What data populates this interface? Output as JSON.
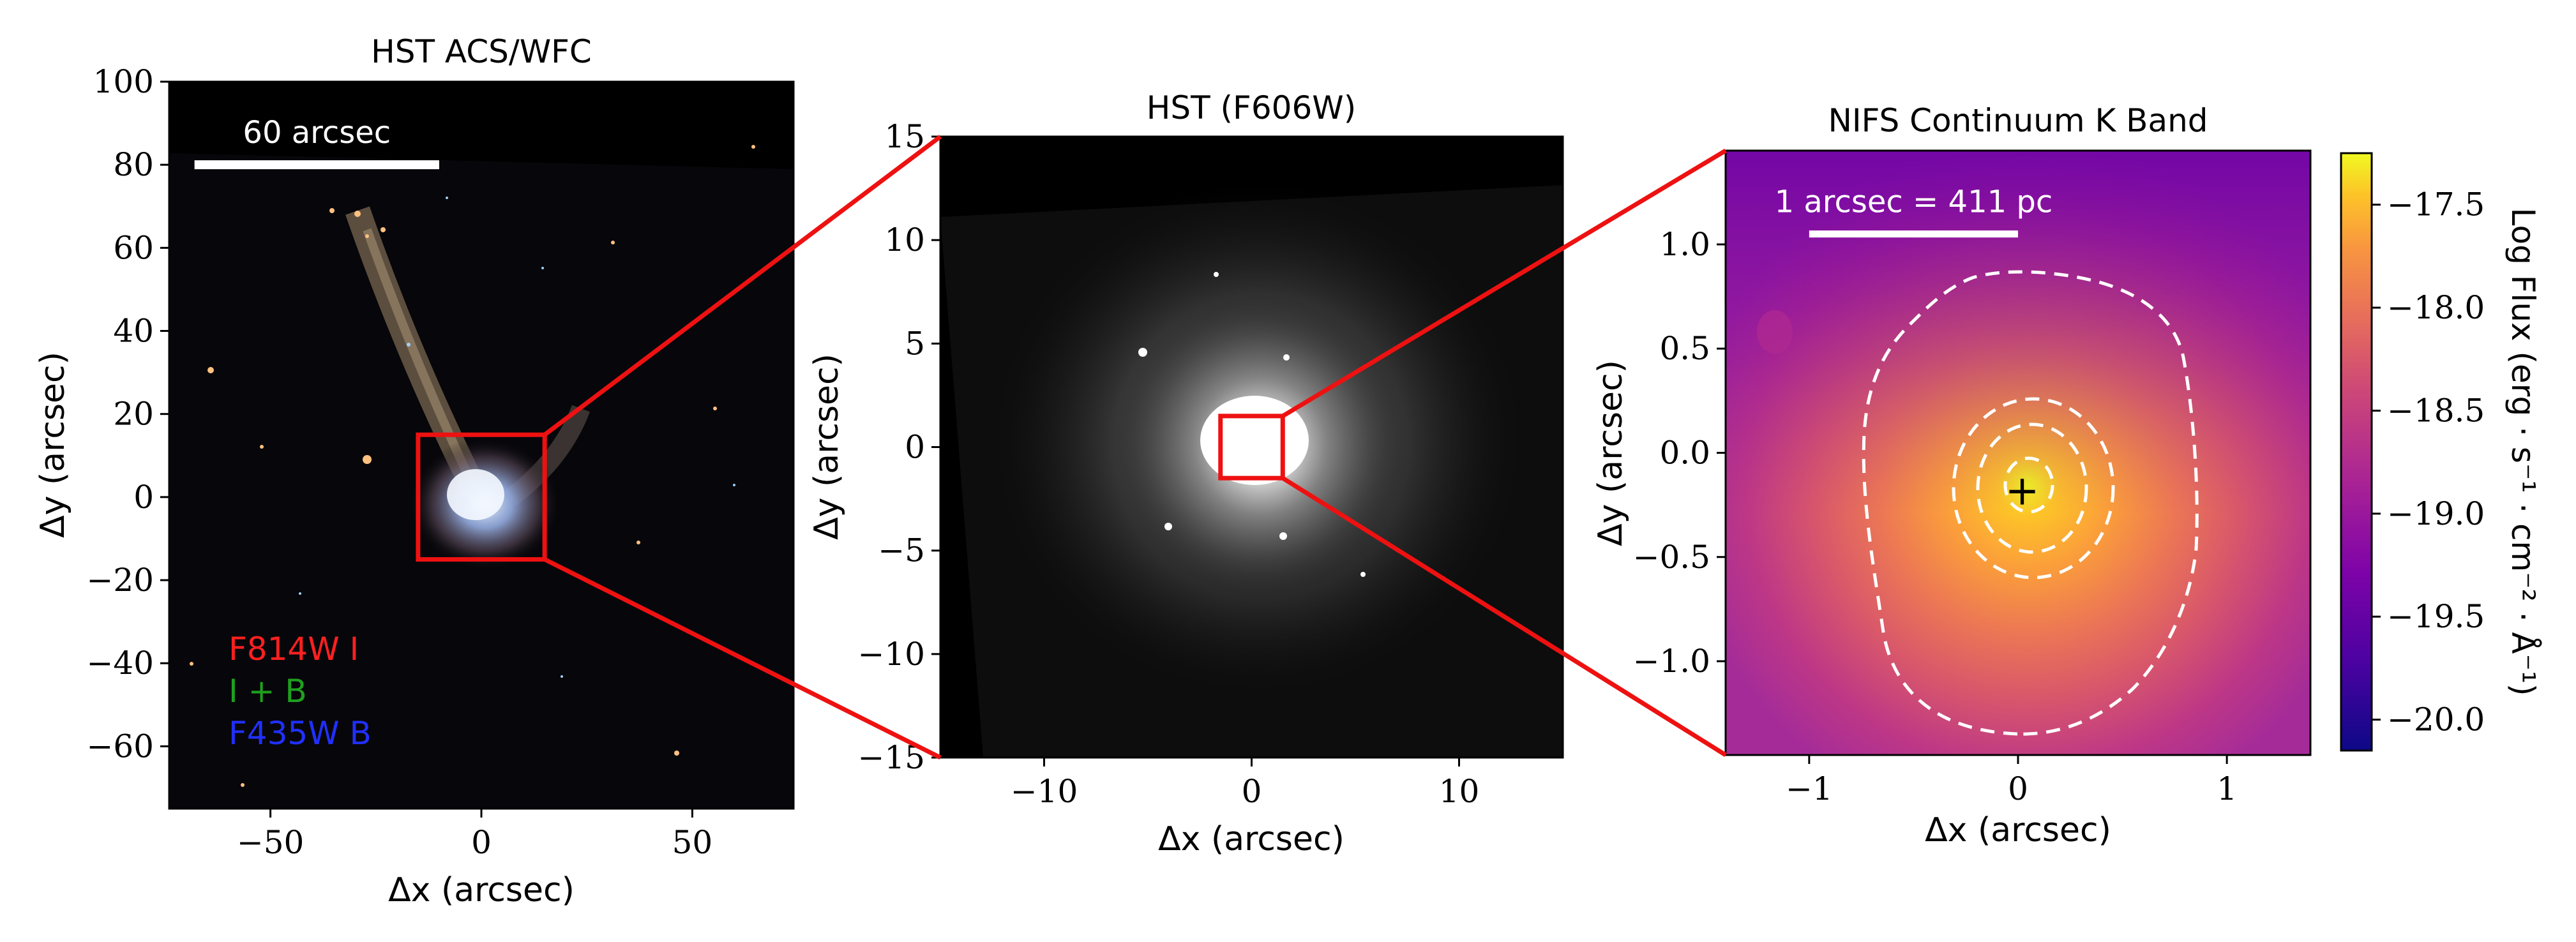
{
  "colors": {
    "zoom_box": "#ee1111",
    "contour": "#ffffff",
    "plot_bg": "#000000",
    "filter_red": "#ff2020",
    "filter_green": "#1fa01f",
    "filter_blue": "#2030ff",
    "colormap": [
      "#0d0887",
      "#5c01a6",
      "#9c179e",
      "#cc4778",
      "#ed7953",
      "#fdb42f",
      "#f0f921"
    ]
  },
  "chart_data": [
    {
      "type": "heatmap",
      "title": "HST ACS/WFC",
      "xlabel": "Δx (arcsec)",
      "ylabel": "Δy (arcsec)",
      "xlim": [
        -74,
        74
      ],
      "ylim": [
        -75,
        100
      ],
      "xticks": [
        -50,
        0,
        50
      ],
      "xtick_labels": [
        "−50",
        "0",
        "50"
      ],
      "yticks": [
        100,
        80,
        60,
        40,
        20,
        0,
        -20,
        -40,
        -60
      ],
      "ytick_labels": [
        "100",
        "80",
        "60",
        "40",
        "20",
        "0",
        "−20",
        "−40",
        "−60"
      ],
      "scalebar": {
        "label": "60 arcsec",
        "x_start": -68,
        "x_end": -10,
        "y": 80
      },
      "zoom_box": {
        "x": [
          -15,
          15
        ],
        "y": [
          -15,
          15
        ]
      },
      "legend": [
        "F814W I",
        "I + B",
        "F435W B"
      ],
      "grid": false
    },
    {
      "type": "heatmap",
      "title": "HST (F606W)",
      "xlabel": "Δx (arcsec)",
      "ylabel": "Δy (arcsec)",
      "xlim": [
        -15,
        15
      ],
      "ylim": [
        -15,
        15
      ],
      "xticks": [
        -10,
        0,
        10
      ],
      "xtick_labels": [
        "−10",
        "0",
        "10"
      ],
      "yticks": [
        15,
        10,
        5,
        0,
        -5,
        -10,
        -15
      ],
      "ytick_labels": [
        "15",
        "10",
        "5",
        "0",
        "−5",
        "−10",
        "−15"
      ],
      "zoom_box": {
        "x": [
          -1.5,
          1.5
        ],
        "y": [
          -1.5,
          1.5
        ]
      },
      "grid": false
    },
    {
      "type": "heatmap",
      "title": "NIFS Continuum K Band",
      "xlabel": "Δx (arcsec)",
      "ylabel": "Δy (arcsec)",
      "xlim": [
        -1.4,
        1.4
      ],
      "ylim": [
        -1.45,
        1.45
      ],
      "xticks": [
        -1,
        0,
        1
      ],
      "xtick_labels": [
        "−1",
        "0",
        "1"
      ],
      "yticks": [
        1.0,
        0.5,
        0.0,
        -0.5,
        -1.0
      ],
      "ytick_labels": [
        "1.0",
        "0.5",
        "0.0",
        "−0.5",
        "−1.0"
      ],
      "scalebar": {
        "label": "1 arcsec = 411 pc",
        "x_start": -1.0,
        "x_end": 0.0,
        "y": 1.05
      },
      "peak_marker": {
        "label": "+",
        "x": 0.02,
        "y": -0.18
      },
      "contours_dashed": 4,
      "grid": false,
      "colorbar": {
        "label": "Log Flux (erg · s⁻¹ · cm⁻² · Å⁻¹)",
        "range": [
          -20.15,
          -17.25
        ],
        "ticks": [
          -17.5,
          -18.0,
          -18.5,
          -19.0,
          -19.5,
          -20.0
        ],
        "tick_labels": [
          "−17.5",
          "−18.0",
          "−18.5",
          "−19.0",
          "−19.5",
          "−20.0"
        ]
      }
    }
  ]
}
